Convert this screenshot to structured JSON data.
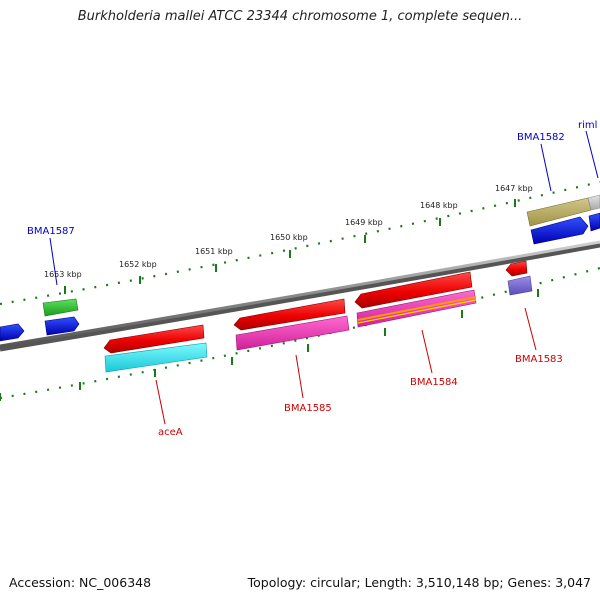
{
  "header": {
    "title": "Burkholderia mallei ATCC 23344 chromosome 1, complete sequen..."
  },
  "footer": {
    "accession": "Accession: NC_006348",
    "summary": "Topology: circular; Length: 3,510,148 bp; Genes: 3,047"
  },
  "colors": {
    "backbone": "#888888",
    "scale_ticks": "#1a7a1a",
    "forward_label": "#0000cc",
    "reverse_label": "#cc0000"
  },
  "scale_labels": [
    "1653 kbp",
    "1652 kbp",
    "1651 kbp",
    "1650 kbp",
    "1649 kbp",
    "1648 kbp",
    "1647 kbp"
  ],
  "gene_labels": {
    "bma1587": "BMA1587",
    "bma1582": "BMA1582",
    "riml": "riml",
    "acea": "aceA",
    "bma1585": "BMA1585",
    "bma1584": "BMA1584",
    "bma1583": "BMA1583"
  }
}
